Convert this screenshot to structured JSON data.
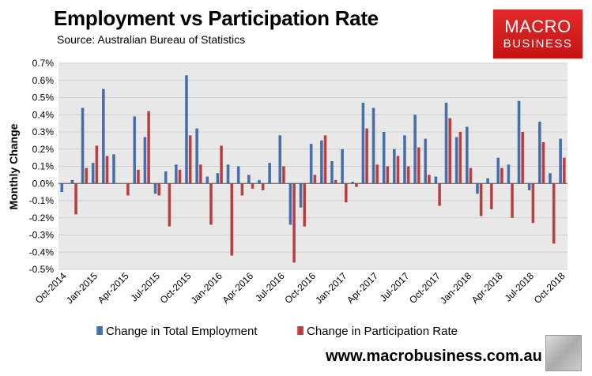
{
  "header": {
    "title": "Employment vs Participation Rate",
    "source": "Source: Australian Bureau of Statistics"
  },
  "logo": {
    "line1": "MACRO",
    "line2": "BUSINESS"
  },
  "footer": {
    "url": "www.macrobusiness.com.au"
  },
  "colors": {
    "employment": "#3a66a8",
    "participation": "#b73333",
    "plot_bg": "#e8e8e8",
    "logo_red": "#d42020"
  },
  "chart_data": {
    "type": "bar",
    "title": "Employment vs Participation Rate",
    "xlabel": "",
    "ylabel": "Monthly Change",
    "ylim": [
      -0.5,
      0.7
    ],
    "yticks": [
      -0.5,
      -0.4,
      -0.3,
      -0.2,
      -0.1,
      0.0,
      0.1,
      0.2,
      0.3,
      0.4,
      0.5,
      0.6,
      0.7
    ],
    "ytick_labels": [
      "-0.5%",
      "-0.4%",
      "-0.3%",
      "-0.2%",
      "-0.1%",
      "0.0%",
      "0.1%",
      "0.2%",
      "0.3%",
      "0.4%",
      "0.5%",
      "0.6%",
      "0.7%"
    ],
    "categories": [
      "Oct-2014",
      "Nov-2014",
      "Dec-2014",
      "Jan-2015",
      "Feb-2015",
      "Mar-2015",
      "Apr-2015",
      "May-2015",
      "Jun-2015",
      "Jul-2015",
      "Aug-2015",
      "Sep-2015",
      "Oct-2015",
      "Nov-2015",
      "Dec-2015",
      "Jan-2016",
      "Feb-2016",
      "Mar-2016",
      "Apr-2016",
      "May-2016",
      "Jun-2016",
      "Jul-2016",
      "Aug-2016",
      "Sep-2016",
      "Oct-2016",
      "Nov-2016",
      "Dec-2016",
      "Jan-2017",
      "Feb-2017",
      "Mar-2017",
      "Apr-2017",
      "May-2017",
      "Jun-2017",
      "Jul-2017",
      "Aug-2017",
      "Sep-2017",
      "Oct-2017",
      "Nov-2017",
      "Dec-2017",
      "Jan-2018",
      "Feb-2018",
      "Mar-2018",
      "Apr-2018",
      "May-2018",
      "Jun-2018",
      "Jul-2018",
      "Aug-2018",
      "Sep-2018",
      "Oct-2018"
    ],
    "tick_labels": [
      "Oct-2014",
      "Jan-2015",
      "Apr-2015",
      "Jul-2015",
      "Oct-2015",
      "Jan-2016",
      "Apr-2016",
      "Jul-2016",
      "Oct-2016",
      "Jan-2017",
      "Apr-2017",
      "Jul-2017",
      "Oct-2017",
      "Jan-2018",
      "Apr-2018",
      "Jul-2018",
      "Oct-2018"
    ],
    "series": [
      {
        "name": "Change in Total Employment",
        "values": [
          -0.05,
          0.02,
          0.44,
          0.12,
          0.55,
          0.17,
          0.0,
          0.39,
          0.27,
          -0.06,
          0.07,
          0.11,
          0.63,
          0.32,
          0.04,
          0.06,
          0.11,
          0.1,
          0.05,
          0.02,
          0.12,
          0.28,
          -0.24,
          -0.14,
          0.23,
          0.25,
          0.13,
          0.2,
          0.01,
          0.47,
          0.44,
          0.3,
          0.2,
          0.28,
          0.4,
          0.26,
          0.04,
          0.47,
          0.27,
          0.33,
          -0.06,
          0.03,
          0.15,
          0.11,
          0.48,
          -0.04,
          0.36,
          0.06,
          0.26
        ]
      },
      {
        "name": "Change in Participation Rate",
        "values": [
          0.0,
          -0.18,
          0.09,
          0.22,
          0.16,
          0.0,
          -0.07,
          0.08,
          0.42,
          -0.07,
          -0.25,
          0.08,
          0.28,
          0.11,
          -0.24,
          0.22,
          -0.42,
          -0.07,
          -0.03,
          -0.04,
          0.0,
          0.1,
          -0.46,
          -0.25,
          0.05,
          0.28,
          0.02,
          -0.11,
          -0.02,
          0.32,
          0.11,
          0.1,
          0.16,
          0.1,
          0.21,
          0.05,
          -0.13,
          0.38,
          0.3,
          0.09,
          -0.19,
          -0.15,
          0.09,
          -0.2,
          0.3,
          -0.23,
          0.24,
          -0.35,
          0.15
        ]
      }
    ],
    "legend": "bottom-center"
  }
}
